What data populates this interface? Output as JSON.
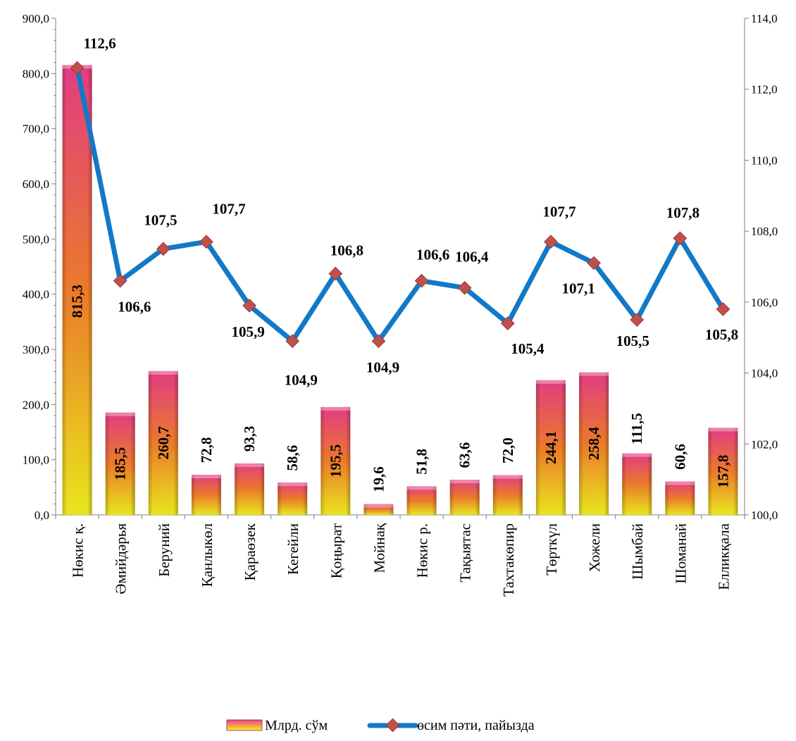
{
  "chart_data": {
    "type": "bar",
    "categories": [
      "Нөкис қ.",
      "Әмийдәрья",
      "Беруний",
      "Қанлыкөл",
      "Қараөзек",
      "Кегейли",
      "Қоңырат",
      "Мойнақ",
      "Нөкис р.",
      "Тақыятас",
      "Тахтакөпир",
      "Төрткүл",
      "Хожели",
      "Шымбай",
      "Шоманай",
      "Елликқала"
    ],
    "series": [
      {
        "name": "Млрд. сўм",
        "type": "bar",
        "axis": "left",
        "values": [
          815.3,
          185.5,
          260.7,
          72.8,
          93.3,
          58.6,
          195.5,
          19.6,
          51.8,
          63.6,
          72.0,
          244.1,
          258.4,
          111.5,
          60.6,
          157.8
        ],
        "labels": [
          "815,3",
          "185,5",
          "260,7",
          "72,8",
          "93,3",
          "58,6",
          "195,5",
          "19,6",
          "51,8",
          "63,6",
          "72,0",
          "244,1",
          "258,4",
          "111,5",
          "60,6",
          "157,8"
        ]
      },
      {
        "name": "өсим пәти, пайызда",
        "type": "line",
        "axis": "right",
        "values": [
          112.6,
          106.6,
          107.5,
          107.7,
          105.9,
          104.9,
          106.8,
          104.9,
          106.6,
          106.4,
          105.4,
          107.7,
          107.1,
          105.5,
          107.8,
          105.8
        ],
        "labels": [
          "112,6",
          "106,6",
          "107,5",
          "107,7",
          "105,9",
          "104,9",
          "106,8",
          "104,9",
          "106,6",
          "106,4",
          "105,4",
          "107,7",
          "107,1",
          "105,5",
          "107,8",
          "105,8"
        ]
      }
    ],
    "y_left": {
      "ylim": [
        0,
        900
      ],
      "ticks": [
        "0,0",
        "100,0",
        "200,0",
        "300,0",
        "400,0",
        "500,0",
        "600,0",
        "700,0",
        "800,0",
        "900,0"
      ]
    },
    "y_right": {
      "ylim": [
        100,
        114
      ],
      "ticks": [
        "100,0",
        "102,0",
        "104,0",
        "106,0",
        "108,0",
        "110,0",
        "112,0",
        "114,0"
      ]
    },
    "title": "",
    "xlabel": "",
    "ylabel": "",
    "grid": false,
    "legend_position": "bottom",
    "colors": {
      "bar_top": "#ee3f8a",
      "bar_mid": "#f7802c",
      "bar_bottom": "#f5f21e",
      "line": "#1279c8",
      "marker": "#c0504d"
    }
  }
}
